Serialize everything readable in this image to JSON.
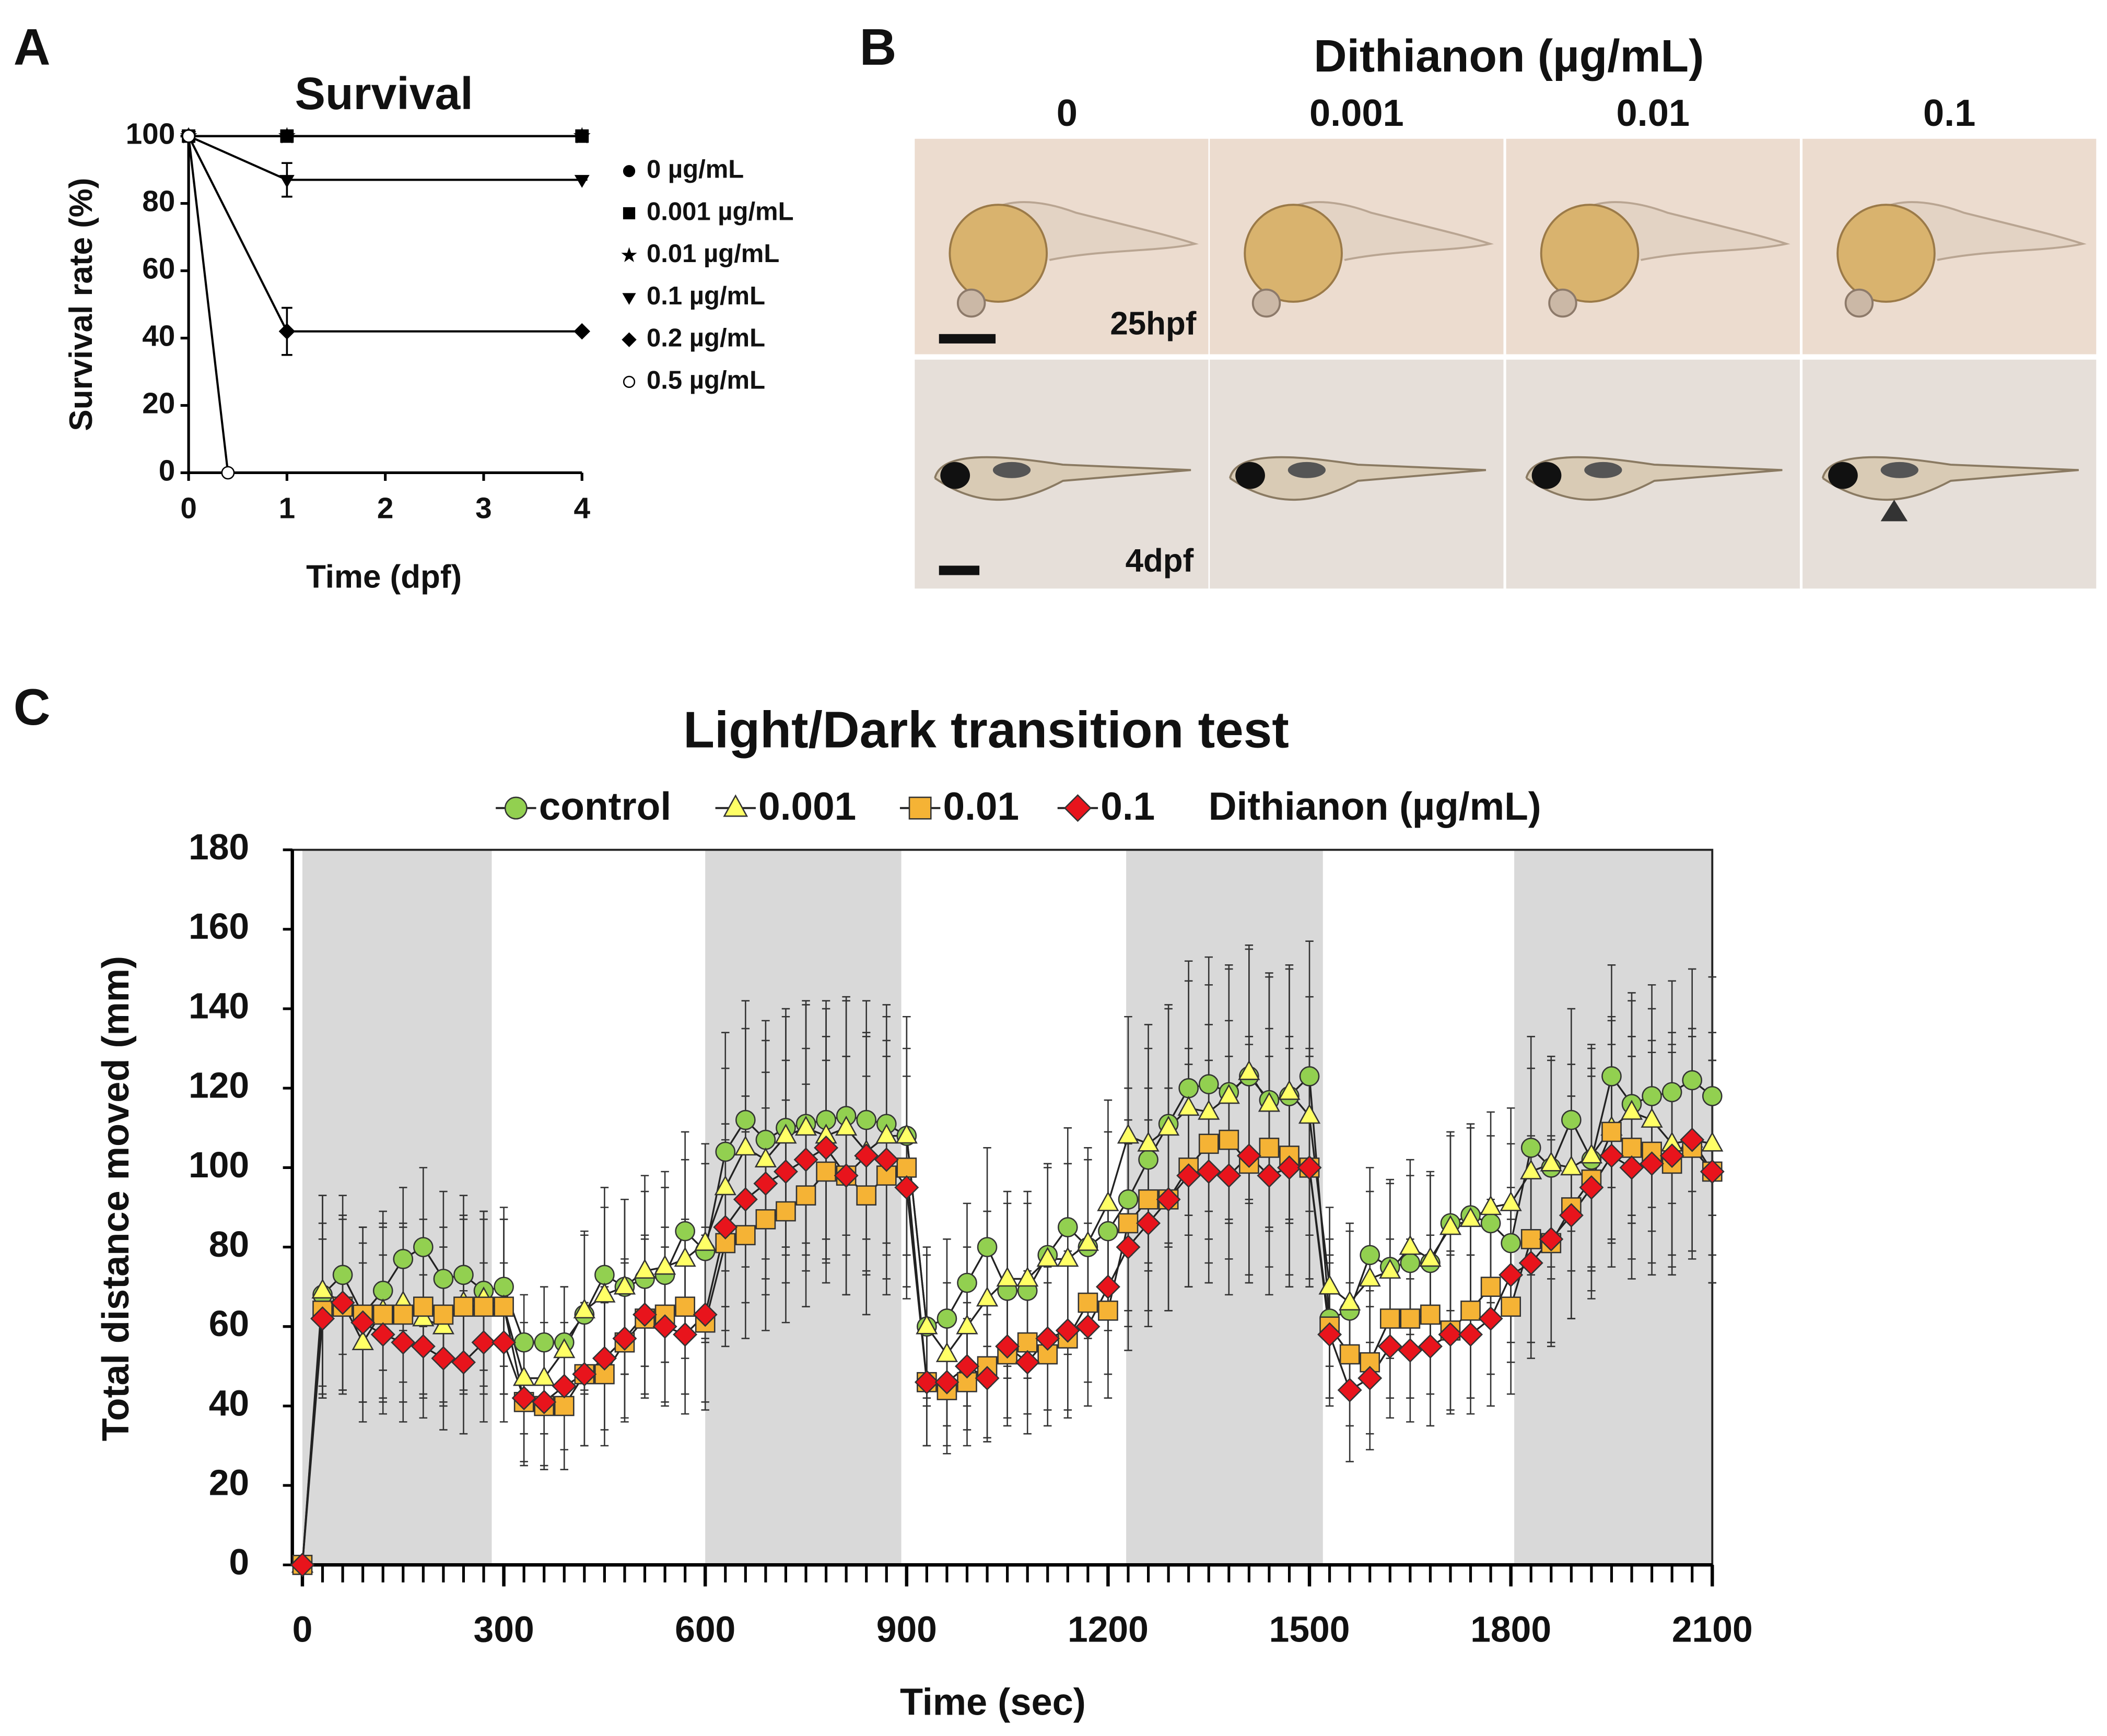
{
  "panel_labels": [
    "A",
    "B",
    "C"
  ],
  "panel_b": {
    "title": "Dithianon (µg/mL)",
    "columns": [
      "0",
      "0.001",
      "0.01",
      "0.1"
    ],
    "rows": [
      "25hpf",
      "4dpf"
    ]
  },
  "chart_data": [
    {
      "type": "line",
      "title": "Survival",
      "xlabel": "Time (dpf)",
      "ylabel": "Survival rate (%)",
      "xlim": [
        0,
        4
      ],
      "ylim": [
        0,
        100
      ],
      "xticks": [
        0,
        1,
        2,
        3,
        4
      ],
      "yticks": [
        0,
        20,
        40,
        60,
        80,
        100
      ],
      "legend": "right",
      "color": "#000000",
      "series": [
        {
          "name": "0  µg/mL",
          "marker": "circle",
          "x": [
            0,
            1,
            4
          ],
          "values": [
            100,
            100,
            100
          ],
          "errors": [
            0,
            0,
            0
          ]
        },
        {
          "name": "0.001 µg/mL",
          "marker": "square",
          "x": [
            0,
            1,
            4
          ],
          "values": [
            100,
            100,
            100
          ],
          "errors": [
            0,
            0,
            0
          ]
        },
        {
          "name": "0.01 µg/mL",
          "marker": "star",
          "x": [
            0,
            1,
            4
          ],
          "values": [
            100,
            100,
            100
          ],
          "errors": [
            0,
            0,
            0
          ]
        },
        {
          "name": "0.1 µg/mL",
          "marker": "triangle-down",
          "x": [
            0,
            1,
            4
          ],
          "values": [
            100,
            87,
            87
          ],
          "errors": [
            0,
            5,
            0
          ]
        },
        {
          "name": "0.2 µg/mL",
          "marker": "diamond",
          "x": [
            0,
            1,
            4
          ],
          "values": [
            100,
            42,
            42
          ],
          "errors": [
            0,
            7,
            0
          ]
        },
        {
          "name": "0.5 µg/mL",
          "marker": "open-circle",
          "x": [
            0,
            0.4
          ],
          "values": [
            100,
            0
          ],
          "errors": [
            0,
            0
          ]
        }
      ]
    },
    {
      "type": "line",
      "title": "Light/Dark transition test",
      "xlabel": "Time (sec)",
      "ylabel": "Total distance moved (mm)",
      "legend": "top",
      "legend_title": "Dithianon (µg/mL)",
      "xlim": [
        -15,
        2100
      ],
      "ylim": [
        0,
        180
      ],
      "xticks": [
        0,
        300,
        600,
        900,
        1200,
        1500,
        1800,
        2100
      ],
      "yticks": [
        0,
        20,
        40,
        60,
        80,
        100,
        120,
        140,
        160,
        180
      ],
      "shaded_ranges": [
        [
          0,
          282
        ],
        [
          600,
          892
        ],
        [
          1227,
          1520
        ],
        [
          1805,
          2100
        ]
      ],
      "shade_color": "#d9d9d9",
      "x": [
        0,
        30,
        60,
        90,
        120,
        150,
        180,
        210,
        240,
        270,
        300,
        330,
        360,
        390,
        420,
        450,
        480,
        510,
        540,
        570,
        600,
        630,
        660,
        690,
        720,
        750,
        780,
        810,
        840,
        870,
        900,
        930,
        960,
        990,
        1020,
        1050,
        1080,
        1110,
        1140,
        1170,
        1200,
        1230,
        1260,
        1290,
        1320,
        1350,
        1380,
        1410,
        1440,
        1470,
        1500,
        1530,
        1560,
        1590,
        1620,
        1650,
        1680,
        1710,
        1740,
        1770,
        1800,
        1830,
        1860,
        1890,
        1920,
        1950,
        1980,
        2010,
        2040,
        2070,
        2100
      ],
      "series": [
        {
          "name": "control",
          "marker": "circle",
          "color": "#92d050",
          "values": [
            0,
            68,
            73,
            63,
            69,
            77,
            80,
            72,
            73,
            69,
            70,
            56,
            56,
            56,
            63,
            73,
            70,
            72,
            73,
            84,
            79,
            104,
            112,
            107,
            110,
            111,
            112,
            113,
            112,
            111,
            108,
            60,
            62,
            71,
            80,
            69,
            69,
            78,
            85,
            80,
            84,
            92,
            102,
            111,
            120,
            121,
            119,
            123,
            117,
            118,
            123,
            62,
            64,
            78,
            75,
            76,
            76,
            86,
            88,
            86,
            81,
            105,
            100,
            112,
            102,
            123,
            116,
            118,
            119,
            122,
            118
          ],
          "errors": [
            0,
            25,
            20,
            22,
            20,
            18,
            20,
            22,
            20,
            20,
            20,
            12,
            14,
            14,
            20,
            22,
            22,
            22,
            22,
            25,
            22,
            30,
            30,
            30,
            30,
            30,
            30,
            30,
            30,
            30,
            30,
            20,
            20,
            20,
            25,
            22,
            22,
            22,
            25,
            22,
            25,
            28,
            28,
            30,
            32,
            32,
            32,
            32,
            32,
            32,
            34,
            20,
            20,
            22,
            22,
            22,
            22,
            22,
            22,
            22,
            25,
            28,
            28,
            28,
            28,
            28,
            28,
            28,
            28,
            28,
            30
          ]
        },
        {
          "name": "0.001",
          "marker": "triangle",
          "color": "#ffff66",
          "values": [
            0,
            69,
            66,
            56,
            64,
            66,
            62,
            60,
            66,
            67,
            65,
            47,
            47,
            54,
            64,
            68,
            70,
            74,
            75,
            77,
            81,
            95,
            105,
            102,
            108,
            110,
            108,
            110,
            104,
            108,
            108,
            60,
            53,
            60,
            67,
            72,
            72,
            77,
            77,
            81,
            91,
            108,
            106,
            110,
            115,
            114,
            118,
            124,
            116,
            119,
            113,
            70,
            66,
            72,
            74,
            80,
            77,
            85,
            87,
            90,
            91,
            99,
            101,
            100,
            103,
            110,
            114,
            112,
            106,
            107,
            106
          ],
          "errors": [
            0,
            24,
            22,
            20,
            22,
            20,
            20,
            20,
            22,
            22,
            22,
            14,
            14,
            16,
            20,
            22,
            22,
            24,
            24,
            25,
            25,
            30,
            30,
            30,
            30,
            32,
            32,
            32,
            30,
            30,
            30,
            18,
            18,
            20,
            22,
            22,
            22,
            24,
            24,
            24,
            26,
            30,
            30,
            30,
            32,
            32,
            32,
            32,
            32,
            32,
            30,
            20,
            20,
            22,
            22,
            22,
            22,
            24,
            24,
            24,
            24,
            26,
            26,
            26,
            28,
            28,
            28,
            28,
            28,
            28,
            28
          ]
        },
        {
          "name": "0.01",
          "marker": "square",
          "color": "#f5b335",
          "values": [
            0,
            64,
            65,
            63,
            63,
            63,
            65,
            63,
            65,
            65,
            65,
            41,
            40,
            40,
            48,
            48,
            56,
            62,
            63,
            65,
            61,
            81,
            83,
            87,
            89,
            93,
            99,
            98,
            93,
            98,
            100,
            46,
            44,
            46,
            50,
            53,
            56,
            53,
            57,
            66,
            64,
            86,
            92,
            92,
            100,
            106,
            107,
            101,
            105,
            103,
            100,
            60,
            53,
            51,
            62,
            62,
            63,
            59,
            64,
            70,
            65,
            82,
            81,
            90,
            97,
            109,
            105,
            104,
            101,
            105,
            99
          ],
          "errors": [
            0,
            22,
            22,
            22,
            22,
            22,
            22,
            22,
            22,
            22,
            22,
            16,
            16,
            16,
            18,
            18,
            20,
            20,
            22,
            22,
            22,
            26,
            26,
            28,
            28,
            28,
            28,
            30,
            30,
            30,
            30,
            16,
            16,
            16,
            18,
            18,
            18,
            18,
            20,
            20,
            22,
            26,
            28,
            28,
            30,
            30,
            30,
            30,
            30,
            30,
            30,
            18,
            18,
            18,
            20,
            20,
            20,
            20,
            22,
            22,
            22,
            26,
            26,
            28,
            28,
            28,
            28,
            28,
            28,
            28,
            28
          ]
        },
        {
          "name": "0.1",
          "marker": "diamond",
          "color": "#e8141c",
          "values": [
            0,
            62,
            66,
            61,
            58,
            56,
            55,
            52,
            51,
            56,
            56,
            42,
            41,
            45,
            48,
            52,
            57,
            63,
            60,
            58,
            63,
            85,
            92,
            96,
            99,
            102,
            105,
            98,
            103,
            102,
            95,
            46,
            46,
            50,
            47,
            55,
            51,
            57,
            59,
            60,
            70,
            80,
            86,
            92,
            98,
            99,
            98,
            103,
            98,
            100,
            100,
            58,
            44,
            47,
            55,
            54,
            55,
            58,
            58,
            62,
            73,
            76,
            82,
            88,
            95,
            103,
            100,
            101,
            103,
            107,
            99
          ],
          "errors": [
            0,
            20,
            22,
            20,
            20,
            20,
            18,
            18,
            18,
            20,
            20,
            16,
            16,
            16,
            18,
            18,
            20,
            20,
            20,
            20,
            22,
            26,
            26,
            28,
            28,
            28,
            28,
            30,
            30,
            30,
            28,
            16,
            16,
            16,
            16,
            18,
            18,
            18,
            20,
            20,
            22,
            26,
            26,
            28,
            28,
            28,
            30,
            30,
            30,
            30,
            28,
            18,
            18,
            18,
            18,
            18,
            20,
            20,
            20,
            22,
            22,
            24,
            26,
            26,
            28,
            28,
            28,
            28,
            28,
            28,
            28
          ]
        }
      ]
    }
  ]
}
